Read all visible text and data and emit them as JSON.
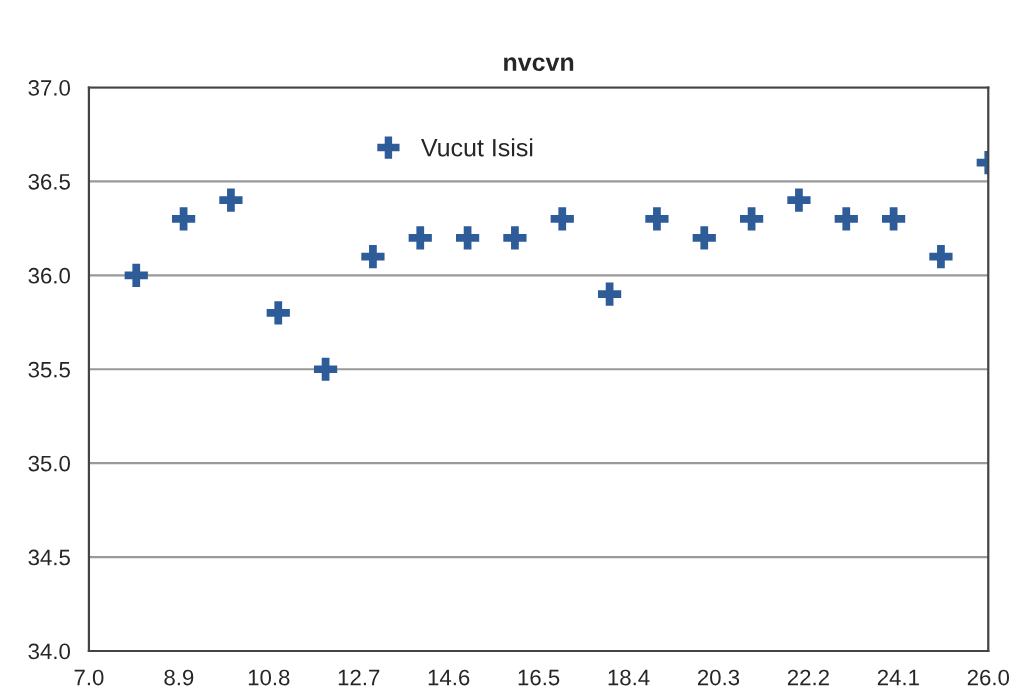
{
  "chart_data": {
    "type": "scatter",
    "title": "nvcvn",
    "x": [
      8,
      9,
      10,
      11,
      12,
      13,
      14,
      15,
      16,
      17,
      18,
      19,
      20,
      21,
      22,
      23,
      24,
      25,
      26
    ],
    "series": [
      {
        "name": "Vucut Isisi",
        "color": "#2e5c99",
        "values": [
          36.0,
          36.3,
          36.4,
          35.8,
          35.5,
          36.1,
          36.2,
          36.2,
          36.2,
          36.3,
          35.9,
          36.3,
          36.2,
          36.3,
          36.4,
          36.3,
          36.3,
          36.1,
          36.6
        ]
      }
    ],
    "xlim": [
      7,
      26
    ],
    "xticks": [
      {
        "value": 7,
        "label": "7.0"
      },
      {
        "value": 8.9,
        "label": "8.9"
      },
      {
        "value": 10.8,
        "label": "10.8"
      },
      {
        "value": 12.7,
        "label": "12.7"
      },
      {
        "value": 14.6,
        "label": "14.6"
      },
      {
        "value": 16.5,
        "label": "16.5"
      },
      {
        "value": 18.4,
        "label": "18.4"
      },
      {
        "value": 20.3,
        "label": "20.3"
      },
      {
        "value": 22.2,
        "label": "22.2"
      },
      {
        "value": 24.1,
        "label": "24.1"
      },
      {
        "value": 26,
        "label": "26.0"
      }
    ],
    "ylim": [
      34,
      37
    ],
    "yticks": [
      {
        "value": 34,
        "label": "34.0"
      },
      {
        "value": 34.5,
        "label": "34.5"
      },
      {
        "value": 35,
        "label": "35.0"
      },
      {
        "value": 35.5,
        "label": "35.5"
      },
      {
        "value": 36,
        "label": "36.0"
      },
      {
        "value": 36.5,
        "label": "36.5"
      },
      {
        "value": 37,
        "label": "37.0"
      }
    ],
    "grid": "y",
    "legend": "top",
    "marker": "cross"
  }
}
